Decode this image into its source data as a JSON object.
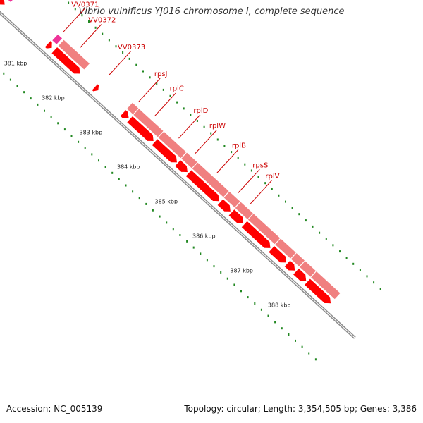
{
  "title": "Vibrio vulnificus YJ016 chromosome I, complete sequence",
  "footer": {
    "accession": "Accession: NC_005139",
    "summary": "Topology: circular; Length: 3,354,505 bp; Genes: 3,386"
  },
  "colors": {
    "backbone": "#8c8c8c",
    "cds": "#ff0000",
    "gene": "#f08080",
    "other_feature": "#ee3399",
    "gc_skew": "#228822",
    "label": "#cc0000"
  },
  "ticks": [
    {
      "label": "381 kbp",
      "pos_kbp": 381
    },
    {
      "label": "382 kbp",
      "pos_kbp": 382
    },
    {
      "label": "383 kbp",
      "pos_kbp": 383
    },
    {
      "label": "384 kbp",
      "pos_kbp": 384
    },
    {
      "label": "385 kbp",
      "pos_kbp": 385
    },
    {
      "label": "386 kbp",
      "pos_kbp": 386
    },
    {
      "label": "387 kbp",
      "pos_kbp": 387
    },
    {
      "label": "388 kbp",
      "pos_kbp": 388
    }
  ],
  "features": [
    {
      "name": "other-feature-left",
      "track": "other",
      "start_kbp": 379.3,
      "end_kbp": 380.1
    },
    {
      "name": "cds-left",
      "track": "cds",
      "start_kbp": 379.3,
      "end_kbp": 380.05
    },
    {
      "name": "other-feature-vv0372",
      "track": "other",
      "start_kbp": 381.2,
      "end_kbp": 381.32
    },
    {
      "name": "cds-vv0371",
      "track": "cds",
      "start_kbp": 381.18,
      "end_kbp": 381.3
    },
    {
      "name": "gene-vv0372",
      "track": "gene",
      "start_kbp": 381.36,
      "end_kbp": 382.05
    },
    {
      "name": "cds-vv0372",
      "track": "cds",
      "start_kbp": 381.36,
      "end_kbp": 382.05
    },
    {
      "name": "cds-vv0373",
      "track": "cds",
      "start_kbp": 382.43,
      "end_kbp": 382.53
    },
    {
      "name": "gene-s10-operon",
      "track": "gene",
      "start_kbp": 383.18,
      "end_kbp": 388.7
    },
    {
      "name": "cds-rpsJ",
      "track": "cds",
      "start_kbp": 383.18,
      "end_kbp": 383.34
    },
    {
      "name": "cds-rplC",
      "track": "cds",
      "start_kbp": 383.36,
      "end_kbp": 384.0
    },
    {
      "name": "cds-rplD",
      "track": "cds",
      "start_kbp": 384.02,
      "end_kbp": 384.62
    },
    {
      "name": "cds-rplW",
      "track": "cds",
      "start_kbp": 384.63,
      "end_kbp": 384.9
    },
    {
      "name": "cds-rplB",
      "track": "cds",
      "start_kbp": 384.92,
      "end_kbp": 385.74
    },
    {
      "name": "cds-rpsS",
      "track": "cds",
      "start_kbp": 385.76,
      "end_kbp": 386.04
    },
    {
      "name": "cds-rplV",
      "track": "cds",
      "start_kbp": 386.06,
      "end_kbp": 386.38
    },
    {
      "name": "cds-rpsC",
      "track": "cds",
      "start_kbp": 386.4,
      "end_kbp": 387.1
    },
    {
      "name": "cds-rplP",
      "track": "cds",
      "start_kbp": 387.12,
      "end_kbp": 387.52
    },
    {
      "name": "cds-rpmC",
      "track": "cds",
      "start_kbp": 387.54,
      "end_kbp": 387.75
    },
    {
      "name": "cds-rpsQ",
      "track": "cds",
      "start_kbp": 387.77,
      "end_kbp": 388.05
    },
    {
      "name": "cds-next",
      "track": "cds",
      "start_kbp": 388.07,
      "end_kbp": 388.7
    }
  ],
  "gene_labels": [
    {
      "text": "VV0371",
      "pos_kbp": 381.25
    },
    {
      "text": "VV0372",
      "pos_kbp": 381.7
    },
    {
      "text": "VV0373",
      "pos_kbp": 382.48
    },
    {
      "text": "rpsJ",
      "pos_kbp": 383.26
    },
    {
      "text": "rplC",
      "pos_kbp": 383.68
    },
    {
      "text": "rplD",
      "pos_kbp": 384.32
    },
    {
      "text": "rplW",
      "pos_kbp": 384.76
    },
    {
      "text": "rplB",
      "pos_kbp": 385.33
    },
    {
      "text": "rpsS",
      "pos_kbp": 385.9
    },
    {
      "text": "rplV",
      "pos_kbp": 386.22
    }
  ]
}
